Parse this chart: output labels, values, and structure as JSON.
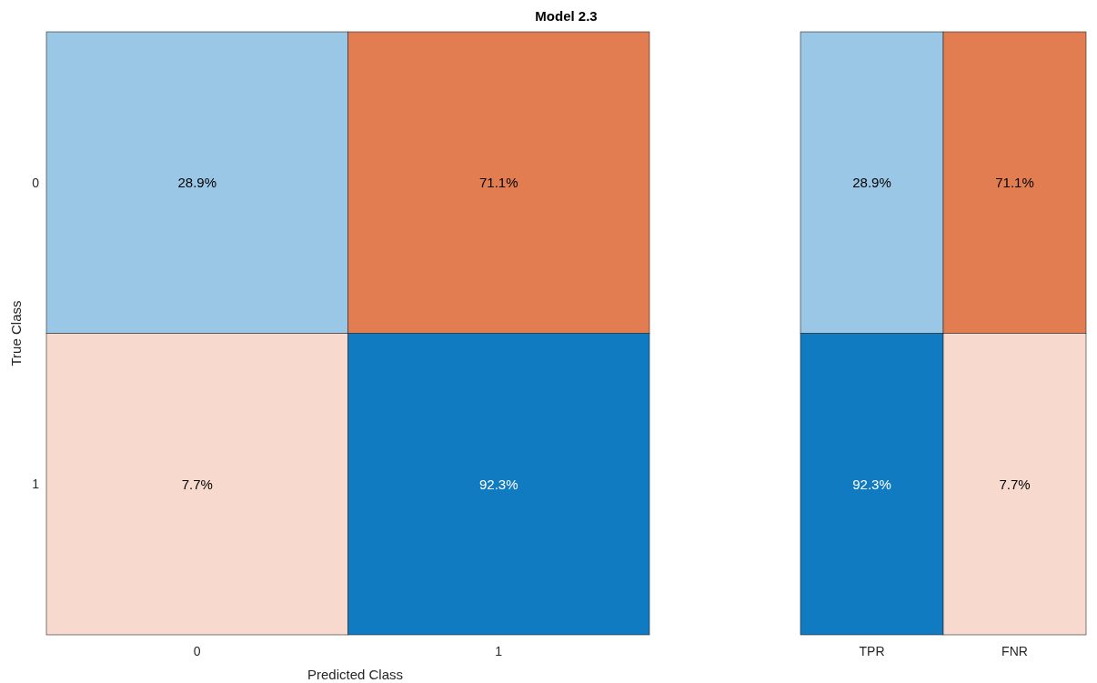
{
  "chart_data": [
    {
      "type": "heatmap",
      "title": "Model 2.3",
      "xlabel": "Predicted Class",
      "ylabel": "True Class",
      "categories": [
        "0",
        "1"
      ],
      "y_categories": [
        "0",
        "1"
      ],
      "cells": [
        [
          28.9,
          71.1
        ],
        [
          7.7,
          92.3
        ]
      ],
      "cell_labels": [
        [
          "28.9%",
          "71.1%"
        ],
        [
          "7.7%",
          "92.3%"
        ]
      ]
    },
    {
      "type": "heatmap",
      "categories": [
        "TPR",
        "FNR"
      ],
      "y_categories": [
        null,
        null
      ],
      "cells": [
        [
          28.9,
          71.1
        ],
        [
          92.3,
          7.7
        ]
      ],
      "cell_labels": [
        [
          "28.9%",
          "71.1%"
        ],
        [
          "92.3%",
          "7.7%"
        ]
      ],
      "tick_labels": "x"
    }
  ]
}
